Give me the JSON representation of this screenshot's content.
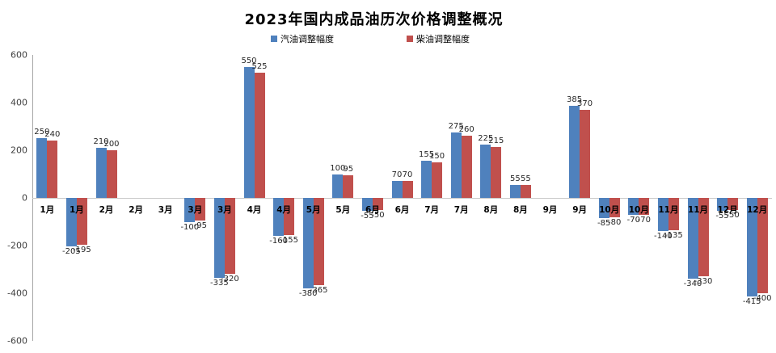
{
  "title": "2023年国内成品油历次价格调整概况",
  "legend": [
    {
      "label": "汽油调整幅度",
      "color": "#4F81BD"
    },
    {
      "label": "柴油调整幅度",
      "color": "#C0504D"
    }
  ],
  "chart_data": {
    "type": "bar",
    "title": "2023年国内成品油历次价格调整概况",
    "xlabel": "",
    "ylabel": "",
    "categories": [
      "1月",
      "1月",
      "2月",
      "2月",
      "3月",
      "3月",
      "3月",
      "4月",
      "4月",
      "5月",
      "5月",
      "6月",
      "6月",
      "7月",
      "7月",
      "8月",
      "8月",
      "9月",
      "9月",
      "10月",
      "10月",
      "11月",
      "11月",
      "12月",
      "12月"
    ],
    "series": [
      {
        "name": "汽油调整幅度",
        "color": "#4F81BD",
        "values": [
          250,
          -205,
          210,
          0,
          0,
          -100,
          -335,
          550,
          -160,
          -380,
          100,
          -55,
          70,
          155,
          275,
          225,
          55,
          0,
          385,
          -85,
          -70,
          -140,
          -340,
          -55,
          -415
        ]
      },
      {
        "name": "柴油调整幅度",
        "color": "#C0504D",
        "values": [
          240,
          -195,
          200,
          0,
          0,
          -95,
          -320,
          525,
          -155,
          -365,
          95,
          -50,
          70,
          150,
          260,
          215,
          55,
          0,
          370,
          -80,
          -70,
          -135,
          -330,
          -50,
          -400
        ]
      }
    ],
    "y_ticks": [
      600,
      400,
      200,
      0,
      -200,
      -400,
      -600
    ],
    "ylim": [
      -600,
      600
    ],
    "grid": false,
    "legend_position": "top",
    "data_labels": "outside-end"
  }
}
